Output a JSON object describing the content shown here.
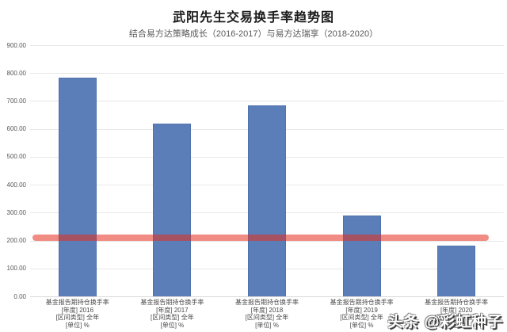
{
  "chart_data": {
    "type": "bar",
    "title": "武阳先生交易换手率趋势图",
    "subtitle": "结合易方达策略成长（2016-2017）与易方达瑞享（2018-2020）",
    "categories": [
      [
        "基金报告期持仓换手率",
        "[年度] 2016",
        "[区间类型] 全年",
        "[单位] %"
      ],
      [
        "基金报告期持仓换手率",
        "[年度] 2017",
        "[区间类型] 全年",
        "[单位] %"
      ],
      [
        "基金报告期持仓换手率",
        "[年度] 2018",
        "[区间类型] 全年",
        "[单位] %"
      ],
      [
        "基金报告期持仓换手率",
        "[年度] 2019",
        "[区间类型] 全年",
        "[单位] %"
      ],
      [
        "基金报告期持仓换手率",
        "[年度] 2020",
        "[区间类型] 全年",
        "[单位] %"
      ]
    ],
    "values": [
      785,
      620,
      685,
      291,
      183
    ],
    "ylim": [
      0,
      900
    ],
    "ytick_step": 100,
    "ytick_labels": [
      "900.00",
      "800.00",
      "700.00",
      "600.00",
      "500.00",
      "400.00",
      "300.00",
      "200.00",
      "100.00",
      "0.00"
    ],
    "reference_line": {
      "value": 210,
      "color_rgba": "rgba(228,45,30,0.55)"
    },
    "bar_color": "#5b7eb8",
    "grid": true,
    "legend_position": "none",
    "xlabel": "",
    "ylabel": ""
  },
  "watermark": {
    "text": "头条 @彩虹种子"
  }
}
